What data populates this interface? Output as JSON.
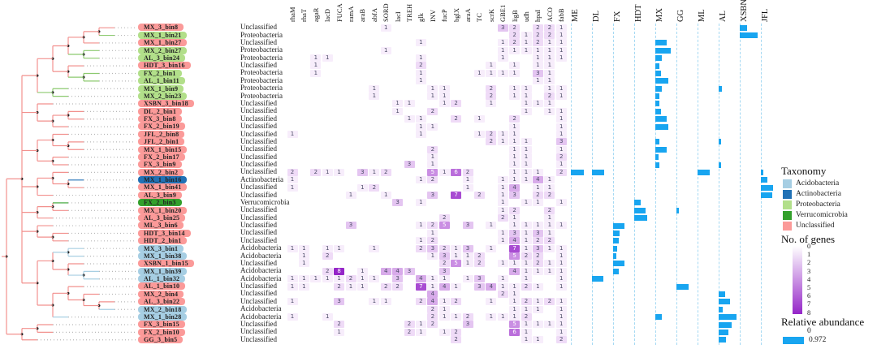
{
  "legend": {
    "taxonomy_title": "Taxonomy",
    "taxonomy_items": [
      {
        "label": "Acidobacteria",
        "color": "#a6cee3"
      },
      {
        "label": "Actinobacteria",
        "color": "#2171b5"
      },
      {
        "label": "Proteobacteria",
        "color": "#b2df8a"
      },
      {
        "label": "Verrucomicrobia",
        "color": "#33a02c"
      },
      {
        "label": "Unclassified",
        "color": "#fb9a99"
      }
    ],
    "genes_title": "No. of genes",
    "genes_ticks": [
      "0",
      "1",
      "2",
      "3",
      "4",
      "5",
      "6",
      "7",
      "8"
    ],
    "genes_scale_low": "#ffffff",
    "genes_scale_high": "#9526c8",
    "abundance_title": "Relative abundance",
    "abundance_min": "0",
    "abundance_max": "0.972",
    "abundance_color": "#18a5f0"
  },
  "chart_data": {
    "type": "heatmap",
    "value_range": [
      0,
      8
    ],
    "abundance_range": [
      0,
      0.972
    ],
    "gene_columns": [
      "rhaM",
      "rhaT",
      "agaR",
      "lacD",
      "FUCA",
      "ramA",
      "araB",
      "abfA",
      "SORD",
      "lacI",
      "TREH",
      "glk",
      "INV",
      "fucP",
      "bglX",
      "araA",
      "TC",
      "scrK",
      "GBE1",
      "ligB",
      "udh",
      "hpaI",
      "ACO",
      "fabB"
    ],
    "site_columns": [
      "ME",
      "DL",
      "FX",
      "HDT",
      "MX",
      "GG",
      "ML",
      "AL",
      "XSBN",
      "JFL"
    ],
    "taxonomy_colors": {
      "Acidobacteria": "#a6cee3",
      "Actinobacteria": "#2171b5",
      "Proteobacteria": "#b2df8a",
      "Verrucomicrobia": "#33a02c",
      "Unclassified": "#fb9a99"
    },
    "tree_colors": {
      "Acidobacteria": "#a8cfe2",
      "Actinobacteria": "#2171b5",
      "Proteobacteria": "#8cca6f",
      "Verrucomicrobia": "#33a02c",
      "Unclassified": "#f2918e"
    },
    "rows": [
      {
        "bin": "MX_3_bin8",
        "taxonomy": "Unclassified",
        "genes": {
          "SORD": 1,
          "GBE1": 3,
          "ligB": 2,
          "hpaI": 2,
          "ACO": 2,
          "fabB": 1
        },
        "abundance": {
          "XSBN": 0.35
        }
      },
      {
        "bin": "MX_1_bin21",
        "taxonomy": "Proteobacteria",
        "genes": {
          "ligB": 2,
          "udh": 1,
          "hpaI": 2,
          "ACO": 2,
          "fabB": 1
        },
        "abundance": {
          "XSBN": 0.8
        }
      },
      {
        "bin": "MX_1_bin27",
        "taxonomy": "Unclassified",
        "genes": {
          "glk": 1,
          "GBE1": 1,
          "ligB": 2,
          "udh": 1,
          "hpaI": 2,
          "ACO": 1,
          "fabB": 1
        },
        "abundance": {
          "MX": 0.5
        }
      },
      {
        "bin": "MX_2_bin27",
        "taxonomy": "Proteobacteria",
        "genes": {
          "SORD": 1,
          "GBE1": 1,
          "ligB": 1,
          "udh": 1,
          "hpaI": 1,
          "ACO": 1,
          "fabB": 1
        },
        "abundance": {
          "MX": 0.7
        }
      },
      {
        "bin": "AL_3_bin24",
        "taxonomy": "Proteobacteria",
        "genes": {
          "agaR": 1,
          "lacD": 1,
          "glk": 1,
          "GBE1": 1,
          "hpaI": 1,
          "ACO": 1,
          "fabB": 1
        },
        "abundance": {
          "MX": 0.3
        }
      },
      {
        "bin": "HDT_3_bin16",
        "taxonomy": "Unclassified",
        "genes": {
          "agaR": 1,
          "glk": 2,
          "scrK": 1,
          "ligB": 1,
          "hpaI": 1,
          "ACO": 1
        },
        "abundance": {
          "MX": 0.2
        }
      },
      {
        "bin": "FX_2_bin1",
        "taxonomy": "Proteobacteria",
        "genes": {
          "agaR": 1,
          "glk": 1,
          "TC": 1,
          "scrK": 1,
          "GBE1": 1,
          "ligB": 1,
          "hpaI": 3,
          "ACO": 1
        },
        "abundance": {
          "MX": 0.25
        }
      },
      {
        "bin": "AL_1_bin11",
        "taxonomy": "Proteobacteria",
        "genes": {
          "glk": 1,
          "hpaI": 1,
          "ACO": 1
        },
        "abundance": {
          "MX": 0.6
        }
      },
      {
        "bin": "MX_1_bin9",
        "taxonomy": "Proteobacteria",
        "genes": {
          "abfA": 1,
          "INV": 1,
          "fucP": 1,
          "scrK": 2,
          "ligB": 1,
          "udh": 1,
          "ACO": 1,
          "fabB": 1
        },
        "abundance": {
          "MX": 0.3,
          "AL": 0.15
        }
      },
      {
        "bin": "MX_2_bin23",
        "taxonomy": "Proteobacteria",
        "genes": {
          "abfA": 1,
          "INV": 1,
          "fucP": 1,
          "scrK": 2,
          "ligB": 1,
          "udh": 1,
          "ACO": 2,
          "fabB": 1
        },
        "abundance": {
          "MX": 0.2
        }
      },
      {
        "bin": "XSBN_3_bin18",
        "taxonomy": "Unclassified",
        "genes": {
          "lacI": 1,
          "TREH": 1,
          "fucP": 1,
          "bglX": 2,
          "scrK": 1,
          "udh": 1,
          "hpaI": 1,
          "ACO": 1
        },
        "abundance": {
          "MX": 0.2
        }
      },
      {
        "bin": "DL_2_bin1",
        "taxonomy": "Unclassified",
        "genes": {
          "lacI": 1,
          "INV": 2,
          "udh": 1,
          "ACO": 1,
          "fabB": 1
        },
        "abundance": {
          "MX": 0.25
        }
      },
      {
        "bin": "FX_3_bin8",
        "taxonomy": "Unclassified",
        "genes": {
          "TREH": 1,
          "glk": 1,
          "bglX": 2,
          "TC": 1,
          "ligB": 2,
          "fabB": 1
        },
        "abundance": {
          "MX": 0.5
        }
      },
      {
        "bin": "FX_2_bin19",
        "taxonomy": "Unclassified",
        "genes": {
          "glk": 1,
          "INV": 1,
          "ligB": 1,
          "fabB": 1
        },
        "abundance": {
          "MX": 0.6
        }
      },
      {
        "bin": "JFL_2_bin8",
        "taxonomy": "Unclassified",
        "genes": {
          "rhaM": 1,
          "glk": 1,
          "TC": 1,
          "scrK": 2,
          "GBE1": 1,
          "ligB": 1,
          "fabB": 1
        },
        "abundance": {}
      },
      {
        "bin": "JFL_2_bin1",
        "taxonomy": "Unclassified",
        "genes": {
          "scrK": 2,
          "GBE1": 1,
          "ligB": 1,
          "udh": 1,
          "fabB": 3
        },
        "abundance": {
          "MX": 0.2,
          "AL": 0.12
        }
      },
      {
        "bin": "MX_1_bin15",
        "taxonomy": "Unclassified",
        "genes": {
          "INV": 2,
          "ligB": 1,
          "udh": 1,
          "fabB": 1
        },
        "abundance": {
          "MX": 0.5
        }
      },
      {
        "bin": "FX_2_bin17",
        "taxonomy": "Unclassified",
        "genes": {
          "INV": 1,
          "ligB": 1,
          "udh": 1,
          "fabB": 2
        },
        "abundance": {
          "MX": 0.15
        }
      },
      {
        "bin": "FX_3_bin9",
        "taxonomy": "Unclassified",
        "genes": {
          "TREH": 3,
          "INV": 1,
          "ligB": 1,
          "udh": 1,
          "fabB": 1
        },
        "abundance": {
          "MX": 0.2,
          "AL": 0.1
        }
      },
      {
        "bin": "MX_2_bin2",
        "taxonomy": "Unclassified",
        "genes": {
          "rhaM": 2,
          "agaR": 2,
          "lacD": 1,
          "FUCA": 1,
          "araB": 3,
          "abfA": 1,
          "SORD": 2,
          "INV": 5,
          "fucP": 1,
          "bglX": 6,
          "araA": 2,
          "ligB": 1,
          "udh": 1,
          "hpaI": 1,
          "fabB": 2
        },
        "abundance": {
          "ME": 0.6,
          "DL": 0.55,
          "ML": 0.55,
          "JFL": 0.1
        }
      },
      {
        "bin": "MX_1_bin16",
        "taxonomy": "Actinobacteria",
        "genes": {
          "rhaM": 1,
          "glk": 1,
          "INV": 2,
          "araA": 1,
          "GBE1": 1,
          "ligB": 1,
          "udh": 1,
          "hpaI": 4,
          "ACO": 1
        },
        "abundance": {
          "JFL": 0.3
        }
      },
      {
        "bin": "MX_1_bin41",
        "taxonomy": "Unclassified",
        "genes": {
          "rhaM": 1,
          "araB": 1,
          "abfA": 2,
          "araA": 1,
          "GBE1": 1,
          "ligB": 4,
          "hpaI": 1,
          "ACO": 1
        },
        "abundance": {
          "JFL": 0.55
        }
      },
      {
        "bin": "AL_3_bin9",
        "taxonomy": "Unclassified",
        "genes": {
          "ramA": 1,
          "SORD": 1,
          "INV": 3,
          "bglX": 7,
          "TC": 2,
          "GBE1": 1,
          "ligB": 3,
          "hpaI": 2,
          "ACO": 2
        },
        "abundance": {
          "JFL": 0.5
        }
      },
      {
        "bin": "FX_2_bin3",
        "taxonomy": "Verrucomicrobia",
        "genes": {
          "lacI": 3,
          "glk": 1,
          "GBE1": 1,
          "udh": 1,
          "hpaI": 1,
          "fabB": 1
        },
        "abundance": {
          "HDT": 0.3
        }
      },
      {
        "bin": "MX_1_bin20",
        "taxonomy": "Unclassified",
        "genes": {
          "GBE1": 1,
          "ligB": 2,
          "ACO": 2
        },
        "abundance": {
          "HDT": 0.5,
          "GG": 0.1
        }
      },
      {
        "bin": "AL_3_bin25",
        "taxonomy": "Unclassified",
        "genes": {
          "fucP": 2,
          "GBE1": 2,
          "ligB": 1,
          "ACO": 1
        },
        "abundance": {
          "HDT": 0.6
        }
      },
      {
        "bin": "ML_3_bin6",
        "taxonomy": "Unclassified",
        "genes": {
          "ramA": 3,
          "glk": 1,
          "INV": 2,
          "fucP": 5,
          "araA": 3,
          "scrK": 1,
          "ligB": 1,
          "udh": 1,
          "hpaI": 1,
          "ACO": 1,
          "fabB": 1
        },
        "abundance": {
          "FX": 0.5
        }
      },
      {
        "bin": "HDT_3_bin14",
        "taxonomy": "Unclassified",
        "genes": {
          "INV": 1,
          "GBE1": 1,
          "ligB": 3,
          "udh": 1,
          "hpaI": 3,
          "ACO": 1
        },
        "abundance": {
          "FX": 0.3
        }
      },
      {
        "bin": "HDT_2_bin1",
        "taxonomy": "Unclassified",
        "genes": {
          "glk": 1,
          "INV": 2,
          "GBE1": 1,
          "ligB": 4,
          "udh": 1,
          "hpaI": 2,
          "ACO": 2
        },
        "abundance": {
          "FX": 0.25
        }
      },
      {
        "bin": "MX_3_bin1",
        "taxonomy": "Acidobacteria",
        "genes": {
          "rhaM": 1,
          "rhaT": 1,
          "lacD": 1,
          "FUCA": 1,
          "abfA": 1,
          "glk": 2,
          "INV": 3,
          "fucP": 2,
          "bglX": 1,
          "araA": 3,
          "scrK": 1,
          "ligB": 7,
          "udh": 1,
          "hpaI": 3,
          "ACO": 1,
          "fabB": 1
        },
        "abundance": {
          "FX": 0.2
        }
      },
      {
        "bin": "MX_1_bin38",
        "taxonomy": "Acidobacteria",
        "genes": {
          "rhaT": 1,
          "lacD": 2,
          "INV": 1,
          "fucP": 3,
          "bglX": 1,
          "araA": 1,
          "TC": 2,
          "ligB": 5,
          "udh": 2,
          "hpaI": 2,
          "fabB": 1
        },
        "abundance": {
          "FX": 0.15
        }
      },
      {
        "bin": "XSBN_1_bin15",
        "taxonomy": "Unclassified",
        "genes": {
          "rhaT": 1,
          "fucP": 2,
          "bglX": 5,
          "araA": 1,
          "TC": 2,
          "GBE1": 1,
          "ligB": 1,
          "udh": 1,
          "hpaI": 2,
          "ACO": 1,
          "fabB": 1
        },
        "abundance": {
          "FX": 0.5
        }
      },
      {
        "bin": "MX_1_bin39",
        "taxonomy": "Acidobacteria",
        "genes": {
          "lacD": 2,
          "FUCA": 8,
          "araB": 1,
          "SORD": 4,
          "lacI": 4,
          "TREH": 3,
          "fucP": 3,
          "ligB": 4,
          "udh": 1,
          "hpaI": 1,
          "ACO": 1,
          "fabB": 1
        },
        "abundance": {
          "FX": 0.25
        }
      },
      {
        "bin": "AL_1_bin32",
        "taxonomy": "Acidobacteria",
        "genes": {
          "rhaM": 1,
          "rhaT": 1,
          "agaR": 1,
          "lacD": 1,
          "FUCA": 1,
          "ramA": 2,
          "araB": 1,
          "abfA": 1,
          "lacI": 3,
          "glk": 4,
          "INV": 1,
          "fucP": 1,
          "araA": 1,
          "TC": 3,
          "GBE1": 1,
          "udh": 1,
          "fabB": 1
        },
        "abundance": {
          "DL": 0.5
        }
      },
      {
        "bin": "AL_1_bin10",
        "taxonomy": "Unclassified",
        "genes": {
          "rhaM": 1,
          "rhaT": 1,
          "FUCA": 2,
          "ramA": 1,
          "araB": 1,
          "SORD": 2,
          "lacI": 2,
          "glk": 7,
          "INV": 1,
          "fucP": 4,
          "bglX": 1,
          "TC": 3,
          "scrK": 4,
          "GBE1": 1,
          "ligB": 1,
          "udh": 2,
          "hpaI": 1,
          "fabB": 1
        },
        "abundance": {
          "GG": 0.55
        }
      },
      {
        "bin": "MX_2_bin4",
        "taxonomy": "Unclassified",
        "genes": {
          "INV": 4,
          "GBE1": 2,
          "ligB": 1
        },
        "abundance": {
          "AL": 0.3
        }
      },
      {
        "bin": "AL_3_bin22",
        "taxonomy": "Unclassified",
        "genes": {
          "rhaM": 1,
          "FUCA": 3,
          "abfA": 1,
          "SORD": 1,
          "glk": 2,
          "INV": 4,
          "fucP": 1,
          "bglX": 2,
          "scrK": 1,
          "ligB": 1,
          "udh": 2,
          "hpaI": 1,
          "ACO": 2,
          "fabB": 1
        },
        "abundance": {
          "AL": 0.5
        }
      },
      {
        "bin": "MX_2_bin18",
        "taxonomy": "Acidobacteria",
        "genes": {
          "INV": 2,
          "fucP": 1,
          "ligB": 1,
          "udh": 1,
          "hpaI": 1,
          "fabB": 1
        },
        "abundance": {
          "AL": 0.2
        }
      },
      {
        "bin": "MX_1_bin28",
        "taxonomy": "Acidobacteria",
        "genes": {
          "rhaM": 1,
          "lacD": 1,
          "INV": 2,
          "fucP": 1,
          "bglX": 1,
          "araA": 2,
          "scrK": 1,
          "GBE1": 1,
          "ligB": 1,
          "udh": 2,
          "fabB": 1
        },
        "abundance": {
          "MX": 0.3,
          "AL": 0.8
        }
      },
      {
        "bin": "FX_3_bin15",
        "taxonomy": "Unclassified",
        "genes": {
          "FUCA": 2,
          "TREH": 2,
          "glk": 1,
          "INV": 2,
          "araA": 3,
          "ligB": 5,
          "udh": 1,
          "hpaI": 1,
          "ACO": 1,
          "fabB": 1
        },
        "abundance": {
          "AL": 0.6
        }
      },
      {
        "bin": "FX_2_bin10",
        "taxonomy": "Unclassified",
        "genes": {
          "FUCA": 1,
          "TREH": 2,
          "glk": 1,
          "fucP": 1,
          "bglX": 2,
          "ligB": 6,
          "udh": 1,
          "fabB": 1
        },
        "abundance": {
          "AL": 0.45
        }
      },
      {
        "bin": "GG_3_bin5",
        "taxonomy": "Unclassified",
        "genes": {
          "bglX": 2,
          "udh": 1,
          "hpaI": 1,
          "fabB": 2
        },
        "abundance": {
          "AL": 0.35
        }
      }
    ],
    "tree_topology": [
      [
        [
          [
            [
              [
                [
                  0,
                  1
                ],
                2
              ],
              [
                3,
                4
              ]
            ],
            [
              5,
              [
                6,
                7
              ]
            ]
          ],
          [
            8,
            9
          ]
        ],
        [
          10,
          [
            [
              11,
              12
            ],
            13
          ]
        ],
        [
          [
            14,
            [
              15,
              16
            ]
          ],
          [
            17,
            18
          ]
        ],
        [
          [
            19,
            [
              20,
              21
            ]
          ],
          22
        ],
        [
          [
            23,
            24
          ],
          25
        ],
        [
          26,
          [
            27,
            28
          ]
        ],
        [
          [
            [
              29,
              30
            ],
            [
              31,
              [
                32,
                33
              ]
            ]
          ],
          [
            [
              34,
              [
                35,
                [
                  36,
                  37
                ]
              ]
            ],
            38
          ]
        ]
      ],
      [
        [
          39,
          40
        ],
        41
      ]
    ]
  }
}
